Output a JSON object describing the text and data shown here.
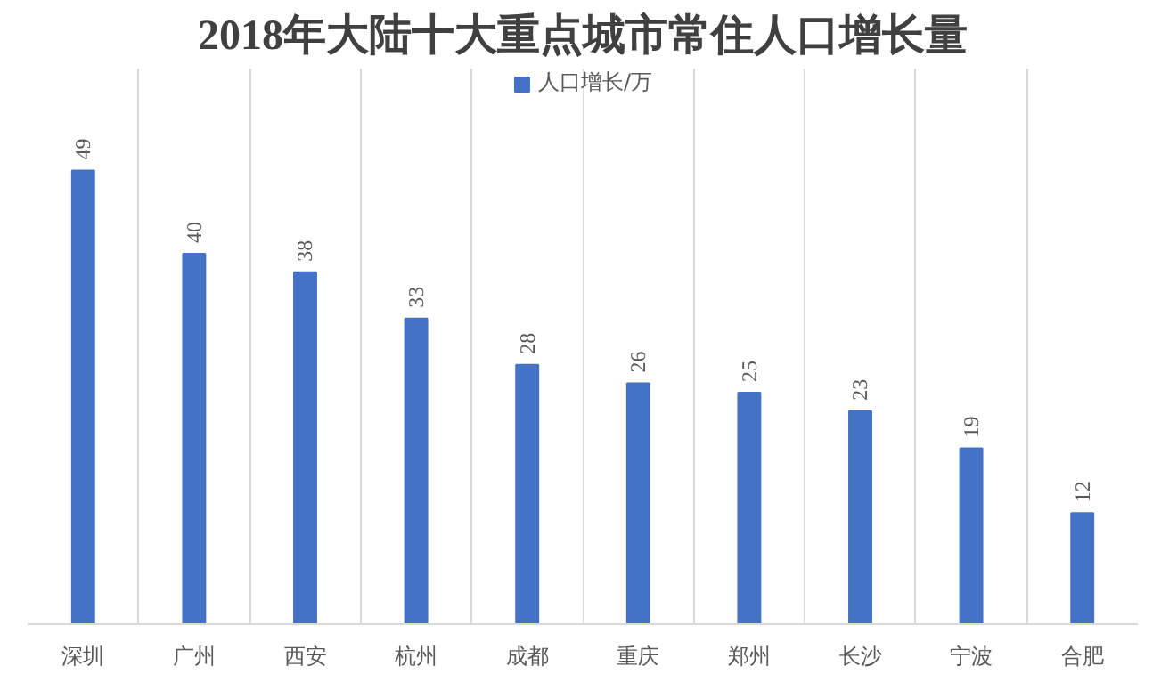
{
  "chart_data": {
    "type": "bar",
    "title": "2018年大陆十大重点城市常住人口增长量",
    "categories": [
      "深圳",
      "广州",
      "西安",
      "杭州",
      "成都",
      "重庆",
      "郑州",
      "长沙",
      "宁波",
      "合肥"
    ],
    "series": [
      {
        "name": "人口增长/万",
        "color": "#4472c4",
        "values": [
          49,
          40,
          38,
          33,
          28,
          26,
          25,
          23,
          19,
          12
        ]
      }
    ],
    "ylim": [
      0,
      60
    ],
    "tick_labels": "x",
    "data_labels": true,
    "grid": "x",
    "legend": "top"
  }
}
